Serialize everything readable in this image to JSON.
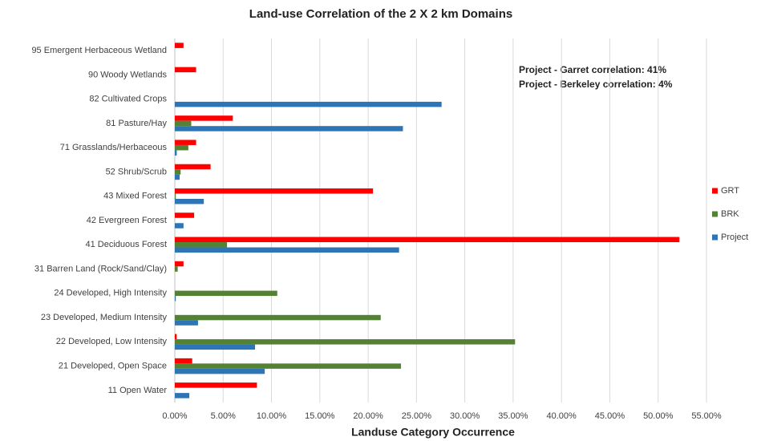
{
  "chart_data": {
    "type": "hbar",
    "title": "Land-use Correlation of the 2 X 2 km Domains",
    "x_label": "Landuse Category Occurrence",
    "annotations": [
      "Project - Garret correlation: 41%",
      "Project - Berkeley correlation: 4%"
    ],
    "categories": [
      "95  Emergent Herbaceous Wetland",
      "90  Woody Wetlands",
      "82  Cultivated Crops",
      "81  Pasture/Hay",
      "71  Grasslands/Herbaceous",
      "52  Shrub/Scrub",
      "43  Mixed Forest",
      "42  Evergreen Forest",
      "41  Deciduous Forest",
      "31  Barren Land (Rock/Sand/Clay)",
      "24  Developed, High Intensity",
      "23  Developed, Medium Intensity",
      "22  Developed, Low Intensity",
      "21  Developed, Open Space",
      "11  Open Water"
    ],
    "series": [
      {
        "name": "GRT",
        "color": "#ff0000",
        "values": [
          0.9,
          2.2,
          0,
          6.0,
          2.2,
          3.7,
          20.5,
          2.0,
          52.2,
          0.9,
          0,
          0,
          0.2,
          1.8,
          8.5
        ]
      },
      {
        "name": "BRK",
        "color": "#548235",
        "values": [
          0,
          0,
          0,
          1.7,
          1.4,
          0.6,
          0.1,
          0,
          5.4,
          0.3,
          10.6,
          21.3,
          35.2,
          23.4,
          0
        ]
      },
      {
        "name": "Project",
        "color": "#2e75b6",
        "values": [
          0,
          0,
          27.6,
          23.6,
          0.2,
          0.5,
          3.0,
          0.9,
          23.2,
          0,
          0.1,
          2.4,
          8.3,
          9.3,
          1.5
        ]
      }
    ],
    "xlim": [
      0,
      55
    ],
    "xticks": [
      {
        "value": 0,
        "label": "0.00%"
      },
      {
        "value": 5,
        "label": "5.00%"
      },
      {
        "value": 10,
        "label": "10.00%"
      },
      {
        "value": 15,
        "label": "15.00%"
      },
      {
        "value": 20,
        "label": "20.00%"
      },
      {
        "value": 25,
        "label": "25.00%"
      },
      {
        "value": 30,
        "label": "30.00%"
      },
      {
        "value": 35,
        "label": "35.00%"
      },
      {
        "value": 40,
        "label": "40.00%"
      },
      {
        "value": 45,
        "label": "45.00%"
      },
      {
        "value": 50,
        "label": "50.00%"
      },
      {
        "value": 55,
        "label": "55.00%"
      }
    ],
    "grid": true,
    "legend": "right"
  }
}
